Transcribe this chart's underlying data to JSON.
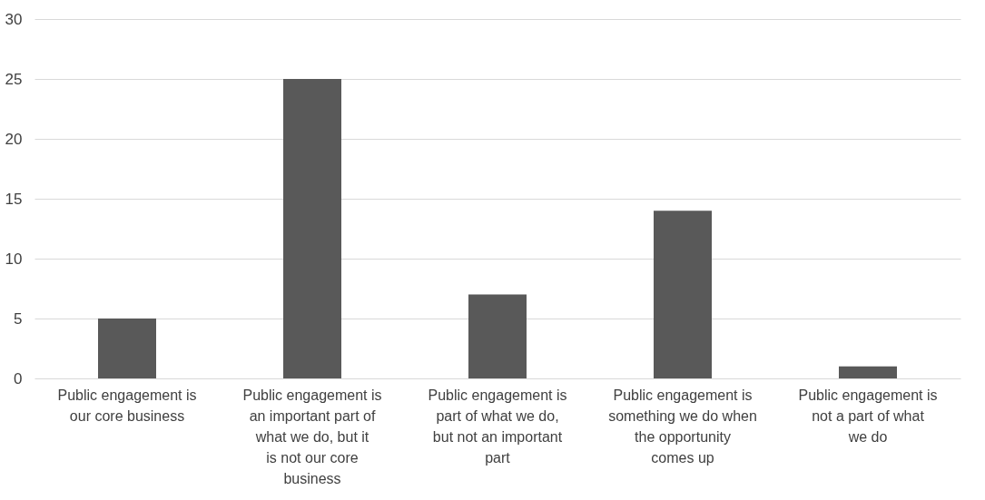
{
  "chart_data": {
    "type": "bar",
    "categories": [
      "Public engagement is our core business",
      "Public engagement is an important part of what we do, but it is not our core business",
      "Public engagement is part of what we do, but not an important part",
      "Public engagement is something we do when the opportunity comes up",
      "Public engagement is not a part of what we do"
    ],
    "values": [
      5,
      25,
      7,
      14,
      1
    ],
    "color": "#595959",
    "ylim": [
      0,
      30
    ],
    "yticks": [
      0,
      5,
      10,
      15,
      20,
      25,
      30
    ],
    "grid": "y"
  }
}
